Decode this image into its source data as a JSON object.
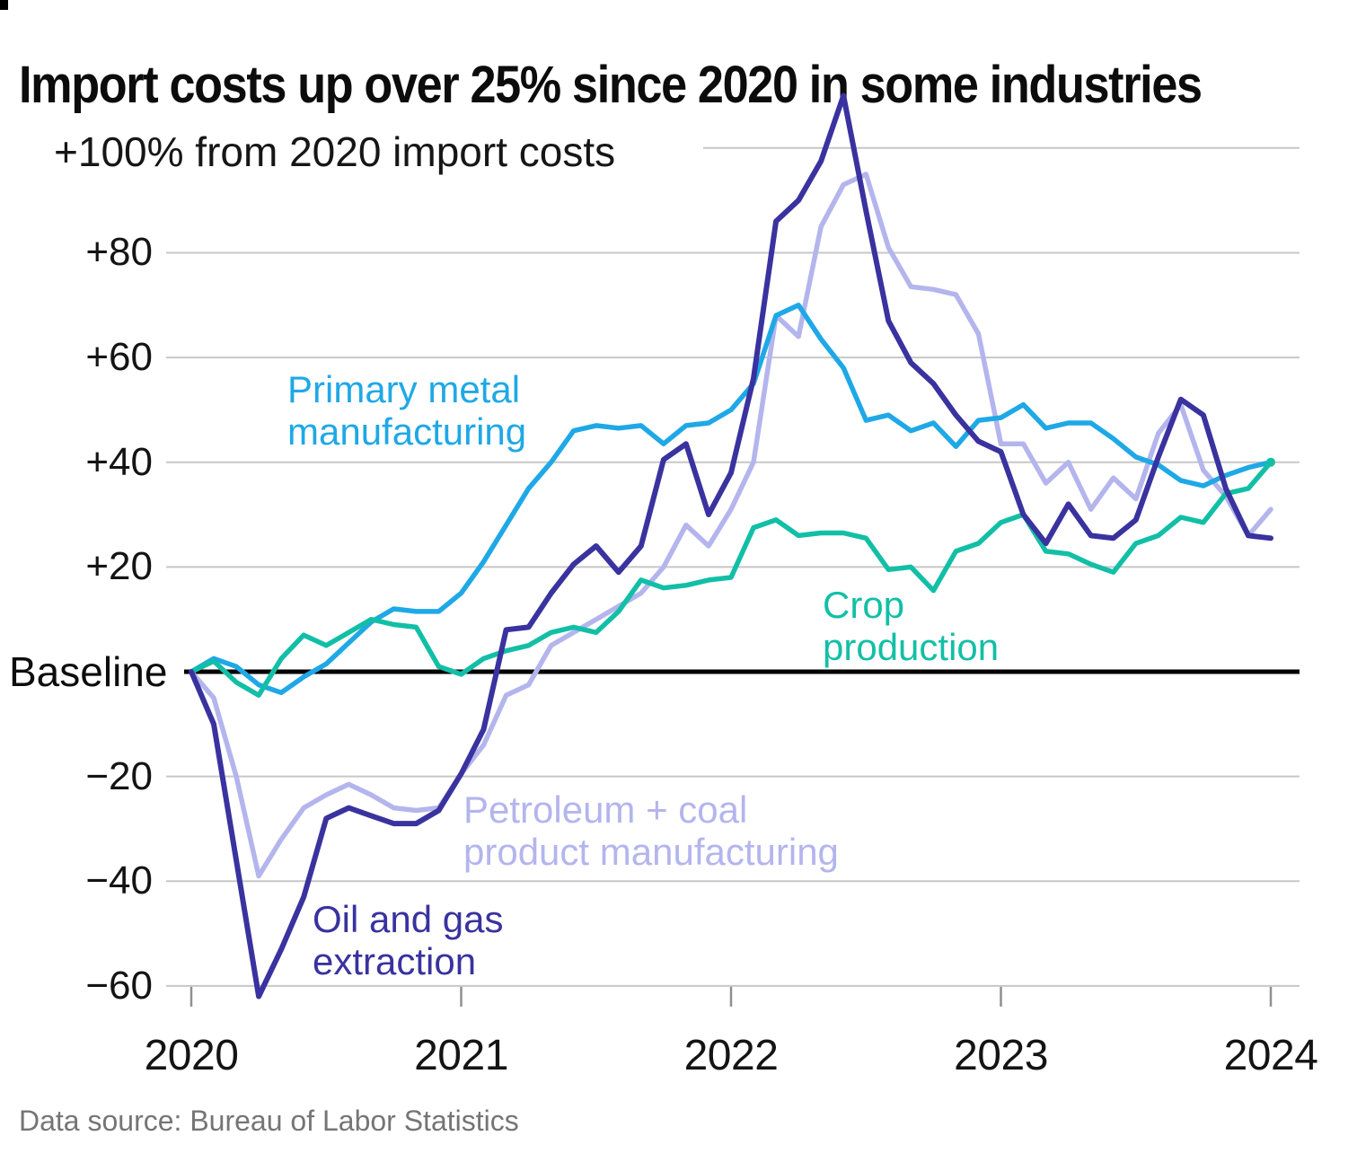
{
  "title": "Import costs up over 25% since 2020 in some industries",
  "source_note": "Data source: Bureau of Labor Statistics",
  "colors": {
    "background": "#ffffff",
    "gridline": "#c7c7c7",
    "baseline": "#000000",
    "tick": "#8f8f8f",
    "title_text": "#0c0c0c",
    "axis_text": "#141414",
    "source_text": "#757575"
  },
  "chart_data": {
    "type": "line",
    "title": "Import costs up over 25% since 2020 in some industries",
    "unit_axis_label": "+100% from 2020 import costs",
    "baseline_label": "Baseline",
    "x_start": "2020-01",
    "x_interval": "monthly",
    "x_tick_labels": [
      "2020",
      "2021",
      "2022",
      "2023",
      "2024"
    ],
    "x_tick_month_indices": [
      0,
      12,
      24,
      36,
      48
    ],
    "y_gridline_values": [
      100,
      80,
      60,
      40,
      20,
      0,
      -20,
      -40,
      -60
    ],
    "y_tick_labels": [
      {
        "text": "+80",
        "value": 80
      },
      {
        "text": "+60",
        "value": 60
      },
      {
        "text": "+40",
        "value": 40
      },
      {
        "text": "+20",
        "value": 20
      },
      {
        "text": "−20",
        "value": -20
      },
      {
        "text": "−40",
        "value": -40
      },
      {
        "text": "−60",
        "value": -60
      }
    ],
    "ylim": [
      -65,
      112
    ],
    "grid": true,
    "legend_position": "inline-labels",
    "series": [
      {
        "name": "Petroleum + coal product manufacturing",
        "label_lines": [
          "Petroleum + coal",
          "product manufacturing"
        ],
        "color": "#b4b5ed",
        "stroke_width": 5.5,
        "end_dot": false,
        "values": [
          0,
          -5,
          -20,
          -39,
          -32,
          -26,
          -23.5,
          -21.5,
          -23.5,
          -26,
          -26.5,
          -26,
          -19.5,
          -14,
          -4.5,
          -2.5,
          5,
          7.5,
          10,
          12.5,
          15,
          20,
          28,
          24,
          31,
          40,
          68,
          64,
          85,
          93,
          95,
          81,
          73.5,
          73,
          72,
          64.5,
          43.5,
          43.5,
          36,
          40,
          31,
          37,
          33,
          45.5,
          51,
          38.5,
          33.5,
          26,
          31
        ]
      },
      {
        "name": "Primary metal manufacturing",
        "label_lines": [
          "Primary metal",
          "manufacturing"
        ],
        "color": "#1fa8e6",
        "stroke_width": 5.5,
        "end_dot": false,
        "values": [
          0,
          2.5,
          1,
          -2.5,
          -4,
          -1,
          1.5,
          5.5,
          9.5,
          12,
          11.5,
          11.5,
          15,
          21,
          28,
          35,
          40,
          46,
          47,
          46.5,
          47,
          43.5,
          47,
          47.5,
          50,
          55,
          68,
          70,
          63.5,
          58,
          48,
          49,
          46,
          47.5,
          43,
          48,
          48.5,
          51,
          46.5,
          47.5,
          47.5,
          44.5,
          41,
          39.5,
          36.5,
          35.5,
          37.5,
          39,
          40
        ]
      },
      {
        "name": "Crop production",
        "label_lines": [
          "Crop",
          "production"
        ],
        "color": "#12bfa6",
        "stroke_width": 5.5,
        "end_dot": true,
        "values": [
          0,
          2,
          -2,
          -4.5,
          2.5,
          7,
          5,
          7.5,
          10,
          9,
          8.5,
          1,
          -0.5,
          2.5,
          4,
          5,
          7.5,
          8.5,
          7.5,
          11.5,
          17.5,
          16,
          16.5,
          17.5,
          18,
          27.5,
          29,
          26,
          26.5,
          26.5,
          25.5,
          19.5,
          20,
          15.5,
          23,
          24.5,
          28.5,
          30,
          23,
          22.5,
          20.5,
          19,
          24.5,
          26,
          29.5,
          28.5,
          34,
          35,
          40
        ]
      },
      {
        "name": "Oil and gas extraction",
        "label_lines": [
          "Oil and gas",
          "extraction"
        ],
        "color": "#39329f",
        "stroke_width": 6,
        "end_dot": false,
        "values": [
          0,
          -10,
          -36,
          -62,
          -53,
          -43,
          -28,
          -26,
          -27.5,
          -29,
          -29,
          -26.5,
          -19.5,
          -11,
          8,
          8.5,
          15,
          20.5,
          24,
          19,
          24,
          40.5,
          43.5,
          30,
          38,
          56,
          86,
          90,
          97.5,
          110,
          88,
          67,
          59,
          55,
          49,
          44,
          42,
          30,
          24.5,
          32,
          26,
          25.5,
          29,
          41,
          52,
          49,
          35,
          26,
          25.5
        ]
      }
    ]
  }
}
